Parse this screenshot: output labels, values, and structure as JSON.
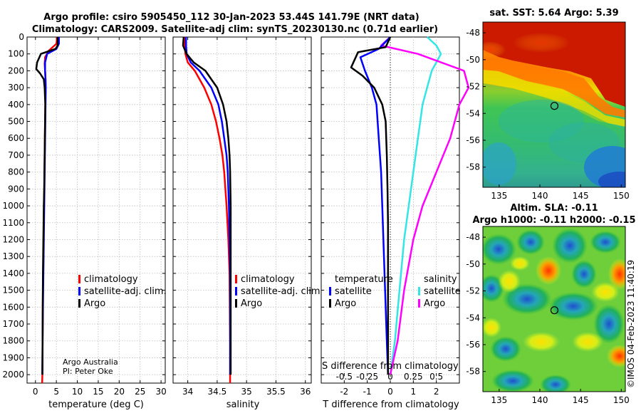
{
  "title_line1": "Argo profile: csiro 5905450_112 30-Jan-2023 53.44S 141.79E (NRT data)",
  "title_line2": "Climatology: CARS2009. Satellite-adj clim: synTS_20230130.nc (0.71d earlier)",
  "timestamp": "©IMOS 04-Feb-2023 11:40:19",
  "credit_line1": "Argo Australia",
  "credit_line2": "PI: Peter Oke",
  "colors": {
    "climatology": "#ff0000",
    "satellite": "#0000ff",
    "argo": "#000000",
    "sat_t_diff": "#0000ff",
    "sat_s_diff": "#33e5e5",
    "argo_s_diff": "#ff00ff",
    "argo_t_diff": "#000000"
  },
  "chart_data": [
    {
      "id": "temperature",
      "type": "line",
      "xlabel": "temperature (deg C)",
      "xlim": [
        -2,
        31
      ],
      "xticks": [
        0,
        5,
        10,
        15,
        20,
        25,
        30
      ],
      "ylim": [
        0,
        2050
      ],
      "yticks": [
        0,
        100,
        200,
        300,
        400,
        500,
        600,
        700,
        800,
        900,
        1000,
        1100,
        1200,
        1300,
        1400,
        1500,
        1600,
        1700,
        1800,
        1900,
        2000
      ],
      "legend": [
        "climatology",
        "satellite-adj. clim.",
        "Argo"
      ],
      "series": [
        {
          "name": "climatology",
          "color": "#ff0000",
          "x": [
            5.2,
            5.0,
            3.2,
            2.3,
            2.2,
            2.3,
            2.4,
            2.4,
            2.35,
            2.3,
            2.25,
            2.2,
            2.15,
            2.1,
            2.05,
            2.0,
            1.95,
            1.9,
            1.85,
            1.8,
            1.75,
            1.7,
            1.65,
            1.6
          ],
          "y": [
            0,
            40,
            80,
            120,
            160,
            200,
            250,
            300,
            400,
            500,
            600,
            700,
            800,
            900,
            1000,
            1100,
            1200,
            1300,
            1400,
            1500,
            1600,
            1800,
            2000,
            2050
          ]
        },
        {
          "name": "satellite-adj. clim.",
          "color": "#0000ff",
          "x": [
            5.6,
            5.6,
            5.0,
            2.8,
            2.3,
            2.3,
            2.4,
            2.45,
            2.4,
            2.35,
            2.3,
            2.25,
            2.2,
            2.15,
            2.1,
            2.05,
            2.0,
            1.95,
            1.9,
            1.85,
            1.8,
            1.75,
            1.7,
            1.65
          ],
          "y": [
            0,
            40,
            70,
            100,
            150,
            200,
            250,
            300,
            400,
            500,
            600,
            700,
            800,
            900,
            1000,
            1100,
            1200,
            1300,
            1400,
            1500,
            1600,
            1700,
            1800,
            2000
          ]
        },
        {
          "name": "Argo",
          "color": "#000000",
          "x": [
            5.3,
            5.3,
            4.8,
            3.0,
            1.3,
            0.4,
            0.2,
            1.1,
            2.0,
            2.2,
            2.35,
            2.3,
            2.25,
            2.2,
            2.15,
            2.1,
            2.0,
            1.95,
            1.9,
            1.85,
            1.8,
            1.75,
            1.7,
            1.65
          ],
          "y": [
            0,
            50,
            70,
            85,
            100,
            150,
            190,
            215,
            250,
            300,
            400,
            500,
            600,
            700,
            800,
            900,
            1000,
            1100,
            1200,
            1300,
            1400,
            1600,
            1800,
            2000
          ]
        }
      ]
    },
    {
      "id": "salinity",
      "type": "line",
      "xlabel": "salinity",
      "xlim": [
        33.75,
        36.1
      ],
      "xticks": [
        34,
        34.5,
        35,
        35.5,
        36
      ],
      "xticklabels": [
        "34",
        "34.5",
        "35",
        "35.5",
        "36"
      ],
      "ylim": [
        0,
        2050
      ],
      "legend": [
        "climatology",
        "satellite-adj. clim.",
        "Argo"
      ],
      "series": [
        {
          "name": "climatology",
          "color": "#ff0000",
          "x": [
            33.95,
            33.95,
            33.96,
            34.0,
            34.12,
            34.28,
            34.4,
            34.48,
            34.54,
            34.59,
            34.62,
            34.66,
            34.69,
            34.71,
            34.72,
            34.72
          ],
          "y": [
            0,
            50,
            100,
            150,
            200,
            300,
            400,
            500,
            600,
            700,
            800,
            1000,
            1200,
            1400,
            1800,
            2050
          ]
        },
        {
          "name": "satellite-adj. clim.",
          "color": "#0000ff",
          "x": [
            33.97,
            33.97,
            33.98,
            34.05,
            34.2,
            34.4,
            34.52,
            34.58,
            34.62,
            34.66,
            34.68,
            34.7,
            34.71,
            34.72,
            34.72
          ],
          "y": [
            0,
            50,
            100,
            150,
            200,
            300,
            400,
            500,
            600,
            700,
            800,
            1000,
            1200,
            1400,
            2000
          ]
        },
        {
          "name": "Argo",
          "color": "#000000",
          "x": [
            33.93,
            33.92,
            33.98,
            34.1,
            34.3,
            34.5,
            34.6,
            34.66,
            34.69,
            34.71,
            34.72,
            34.73,
            34.73,
            34.73
          ],
          "y": [
            0,
            50,
            100,
            150,
            200,
            300,
            400,
            500,
            600,
            700,
            800,
            1000,
            1400,
            2000
          ]
        }
      ]
    },
    {
      "id": "difference",
      "type": "line",
      "xlabel": "T difference from climatology",
      "xlabel_top": "S difference from climatology",
      "xlim": [
        -3,
        3
      ],
      "xticks": [
        -2,
        -1,
        0,
        1,
        2
      ],
      "s_ticks": [
        -0.5,
        -0.25,
        0,
        0.25,
        0.5
      ],
      "s_ticklabels": [
        "-0.5",
        "-0.25",
        "0",
        "0.25",
        "0.5"
      ],
      "ylim": [
        0,
        2050
      ],
      "legend_temperature_title": "temperature",
      "legend_salinity_title": "salinity",
      "legend_temperature": [
        "satellite",
        "Argo"
      ],
      "legend_salinity": [
        "satellite",
        "Argo"
      ],
      "series": [
        {
          "name": "S satellite",
          "color": "#33e5e5",
          "x": [
            0.4,
            0.5,
            0.55,
            0.45,
            0.4,
            0.35,
            0.3,
            0.25,
            0.2,
            0.15,
            0.1,
            0.05,
            0.0
          ],
          "y": [
            0,
            50,
            100,
            200,
            300,
            400,
            600,
            800,
            1000,
            1200,
            1500,
            1800,
            2000
          ]
        },
        {
          "name": "S Argo",
          "color": "#ff00ff",
          "x": [
            0.0,
            -0.1,
            0.3,
            0.8,
            0.85,
            0.75,
            0.65,
            0.5,
            0.35,
            0.25,
            0.15,
            0.08,
            0.0
          ],
          "y": [
            0,
            50,
            100,
            200,
            300,
            400,
            600,
            800,
            1000,
            1200,
            1500,
            1800,
            2000
          ]
        },
        {
          "name": "T satellite",
          "color": "#0000ff",
          "x": [
            0.0,
            -0.5,
            -1.3,
            -1.1,
            -0.8,
            -0.6,
            -0.5,
            -0.4,
            -0.35,
            -0.3,
            -0.25,
            -0.2,
            -0.15,
            -0.1
          ],
          "y": [
            0,
            70,
            120,
            200,
            300,
            400,
            600,
            800,
            1000,
            1200,
            1400,
            1600,
            1800,
            2000
          ]
        },
        {
          "name": "T Argo",
          "color": "#000000",
          "x": [
            0.0,
            -0.2,
            -1.4,
            -1.7,
            -1.2,
            -0.7,
            -0.35,
            -0.2,
            -0.15,
            -0.12,
            -0.1,
            -0.1,
            -0.1,
            -0.1
          ],
          "y": [
            0,
            60,
            90,
            180,
            230,
            300,
            400,
            500,
            700,
            900,
            1100,
            1400,
            1700,
            2000
          ]
        }
      ]
    },
    {
      "id": "sst_map",
      "type": "heatmap",
      "title": "sat. SST: 5.64 Argo: 5.39",
      "xticks": [
        135,
        140,
        145,
        150
      ],
      "yticks": [
        -48,
        -50,
        -52,
        -54,
        -56,
        -58
      ],
      "xlim": [
        133,
        150.5
      ],
      "ylim": [
        -59.5,
        -47.2
      ],
      "float_lon": 141.79,
      "float_lat": -53.44
    },
    {
      "id": "sla_map",
      "type": "heatmap",
      "title_line1": "Altim. SLA: -0.11",
      "title_line2": "Argo h1000: -0.11 h2000: -0.15",
      "xticks": [
        135,
        140,
        145,
        150
      ],
      "yticks": [
        -48,
        -50,
        -52,
        -54,
        -56,
        -58
      ],
      "xlim": [
        133,
        150.5
      ],
      "ylim": [
        -59.5,
        -47.2
      ],
      "float_lon": 141.79,
      "float_lat": -53.44
    }
  ]
}
